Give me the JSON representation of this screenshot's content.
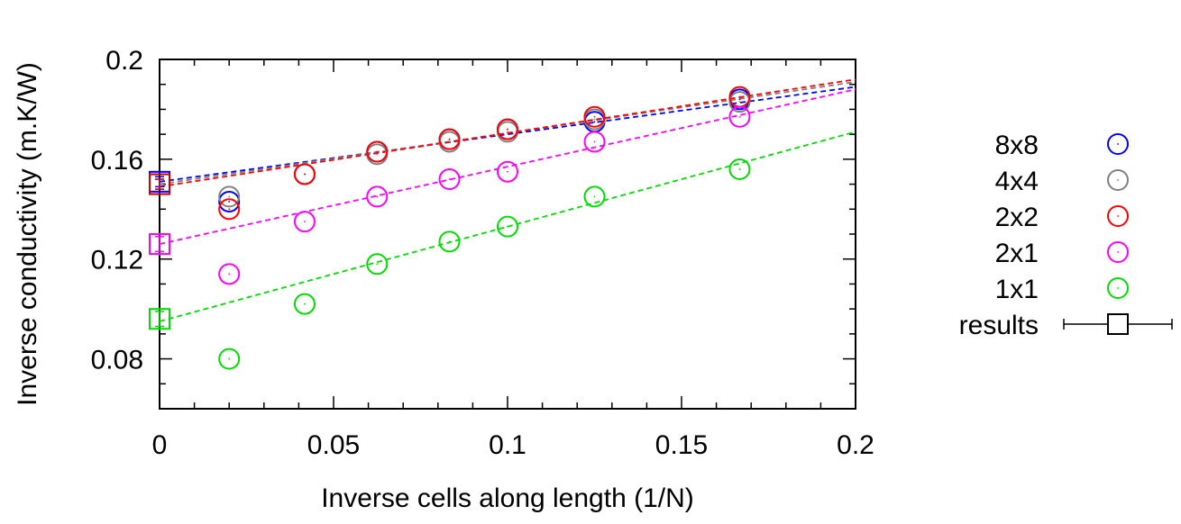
{
  "chart_data": {
    "type": "scatter",
    "title": "",
    "xlabel": "Inverse cells along length (1/N)",
    "ylabel": "Inverse conductivity (m.K/W)",
    "xlim": [
      0,
      0.2
    ],
    "ylim": [
      0.06,
      0.2
    ],
    "xticks": [
      0,
      0.05,
      0.1,
      0.15,
      0.2
    ],
    "yticks": [
      0.08,
      0.12,
      0.16,
      0.2
    ],
    "xtick_labels": [
      "0",
      "0.05",
      "0.1",
      "0.15",
      "0.2"
    ],
    "ytick_labels": [
      "0.08",
      "0.12",
      "0.16",
      "0.2"
    ],
    "grid": false,
    "legend_position": "right",
    "series": [
      {
        "name": "8x8",
        "color": "#0000ff",
        "marker": "circle",
        "x": [
          0.02,
          0.0417,
          0.0625,
          0.0833,
          0.1,
          0.125,
          0.1667
        ],
        "y": [
          0.143,
          0.154,
          0.163,
          0.168,
          0.172,
          0.175,
          0.184
        ],
        "fit": {
          "x0": 0,
          "y0": 0.151,
          "x1": 0.2,
          "y1": 0.189
        }
      },
      {
        "name": "4x4",
        "color": "#808080",
        "marker": "circle",
        "x": [
          0.02,
          0.0417,
          0.0625,
          0.0833,
          0.1,
          0.125,
          0.1667
        ],
        "y": [
          0.145,
          0.154,
          0.162,
          0.167,
          0.171,
          0.176,
          0.183
        ],
        "fit": {
          "x0": 0,
          "y0": 0.15,
          "x1": 0.2,
          "y1": 0.191
        }
      },
      {
        "name": "2x2",
        "color": "#ff0000",
        "marker": "circle",
        "x": [
          0.02,
          0.0417,
          0.0625,
          0.0833,
          0.1,
          0.125,
          0.1667
        ],
        "y": [
          0.14,
          0.154,
          0.163,
          0.168,
          0.172,
          0.177,
          0.185
        ],
        "fit": {
          "x0": 0,
          "y0": 0.149,
          "x1": 0.2,
          "y1": 0.192
        }
      },
      {
        "name": "2x1",
        "color": "#ff00ff",
        "marker": "circle",
        "x": [
          0.02,
          0.0417,
          0.0625,
          0.0833,
          0.1,
          0.125,
          0.1667
        ],
        "y": [
          0.114,
          0.135,
          0.145,
          0.152,
          0.155,
          0.167,
          0.177
        ],
        "fit": {
          "x0": 0,
          "y0": 0.126,
          "x1": 0.2,
          "y1": 0.188
        }
      },
      {
        "name": "1x1",
        "color": "#00dd00",
        "marker": "circle",
        "x": [
          0.02,
          0.0417,
          0.0625,
          0.0833,
          0.1,
          0.125,
          0.1667
        ],
        "y": [
          0.08,
          0.102,
          0.118,
          0.127,
          0.133,
          0.145,
          0.156
        ],
        "fit": {
          "x0": 0,
          "y0": 0.095,
          "x1": 0.2,
          "y1": 0.171
        }
      },
      {
        "name": "results",
        "color": "#000000",
        "marker": "square-errorbar",
        "points": [
          {
            "x": 0,
            "y": 0.151,
            "yerr": 0.002,
            "color": "#0000ff"
          },
          {
            "x": 0,
            "y": 0.15,
            "yerr": 0.002,
            "color": "#808080"
          },
          {
            "x": 0,
            "y": 0.15,
            "yerr": 0.002,
            "color": "#cc0000"
          },
          {
            "x": 0,
            "y": 0.126,
            "yerr": 0.003,
            "color": "#ff00ff"
          },
          {
            "x": 0,
            "y": 0.096,
            "yerr": 0.003,
            "color": "#00dd00"
          }
        ]
      }
    ]
  }
}
